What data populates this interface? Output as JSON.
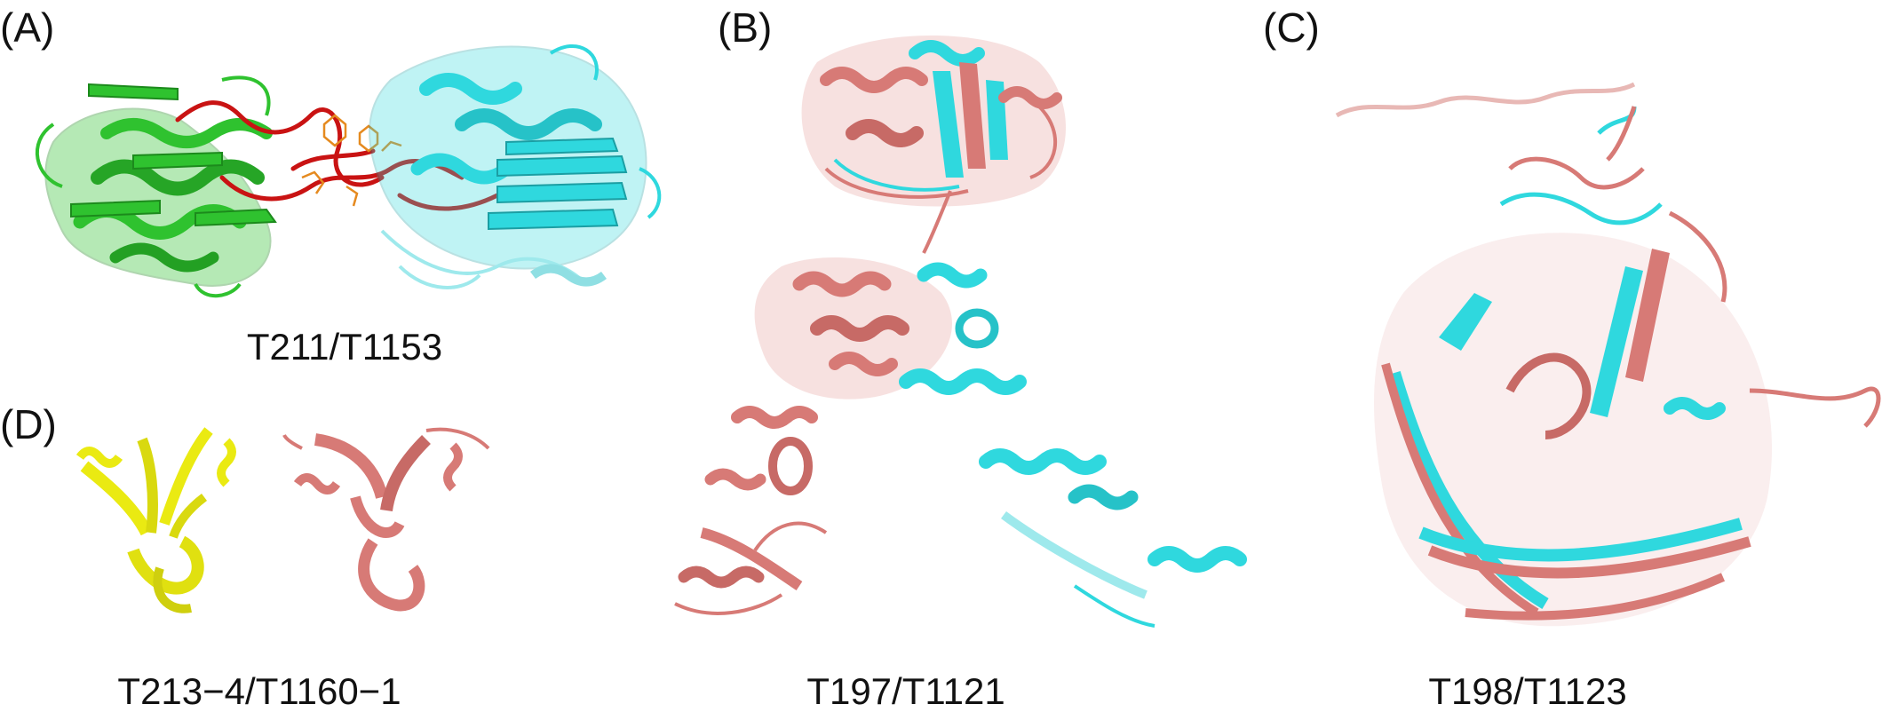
{
  "figure": {
    "panels": [
      {
        "letter": "(A)",
        "caption": "T211/T1153",
        "colors": [
          "#2fc22f",
          "#2fd8de",
          "#c91313",
          "#e58a1f"
        ]
      },
      {
        "letter": "(B)",
        "caption": "T197/T1121",
        "colors": [
          "#2fd8de",
          "#d77a76"
        ]
      },
      {
        "letter": "(C)",
        "caption": "T198/T1123",
        "colors": [
          "#2fd8de",
          "#d77a76"
        ]
      },
      {
        "letter": "(D)",
        "caption": "T213−4/T1160−1",
        "colors": [
          "#eaea12",
          "#d77a76"
        ]
      }
    ]
  }
}
